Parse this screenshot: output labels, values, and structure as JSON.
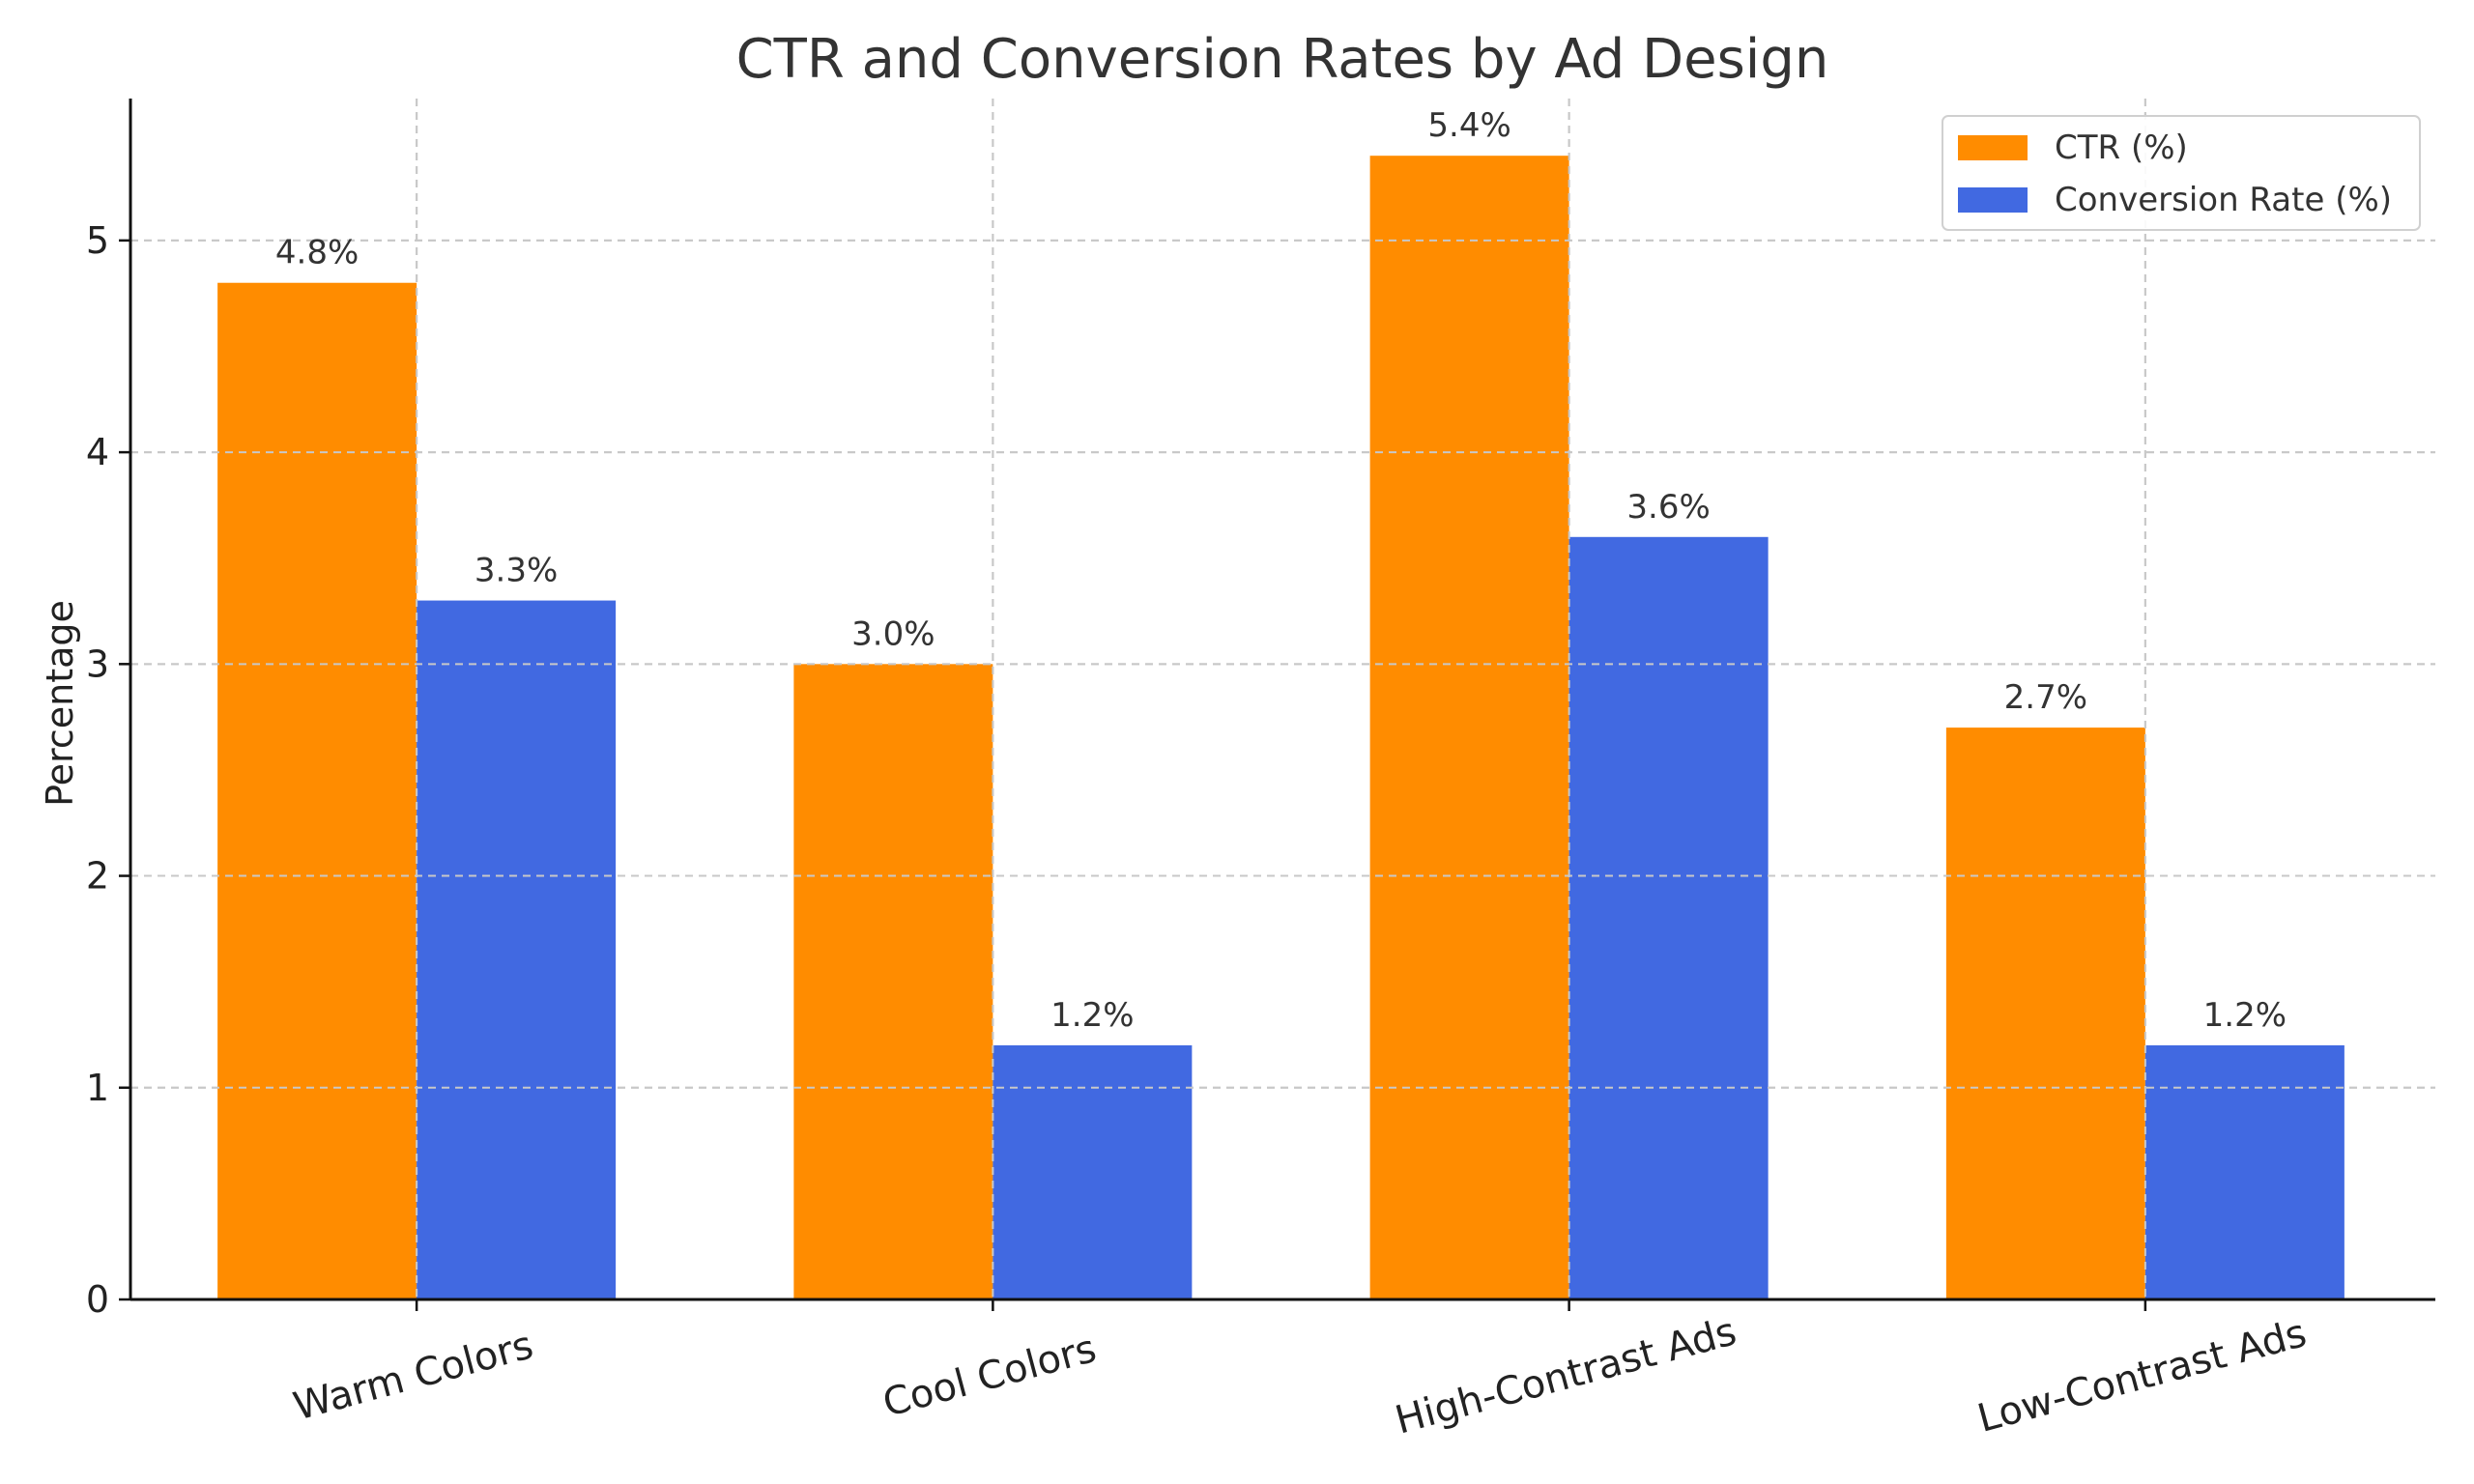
{
  "chart_data": {
    "type": "bar",
    "title": "CTR and Conversion Rates by Ad Design",
    "xlabel": "",
    "ylabel": "Percentage",
    "categories": [
      "Warm Colors",
      "Cool Colors",
      "High-Contrast Ads",
      "Low-Contrast Ads"
    ],
    "series": [
      {
        "name": "CTR (%)",
        "values": [
          4.8,
          3.0,
          5.4,
          2.7
        ],
        "labels": [
          "4.8%",
          "3.0%",
          "5.4%",
          "2.7%"
        ],
        "color": "#ff8c00"
      },
      {
        "name": "Conversion Rate (%)",
        "values": [
          3.3,
          1.2,
          3.6,
          1.2
        ],
        "labels": [
          "3.3%",
          "1.2%",
          "3.6%",
          "1.2%"
        ],
        "color": "#4169e1"
      }
    ],
    "ylim": [
      0,
      5.67
    ],
    "yticks": [
      0,
      1,
      2,
      3,
      4,
      5
    ],
    "grid": true,
    "legend_position": "top-right",
    "category_label_rotation": "slanted"
  }
}
